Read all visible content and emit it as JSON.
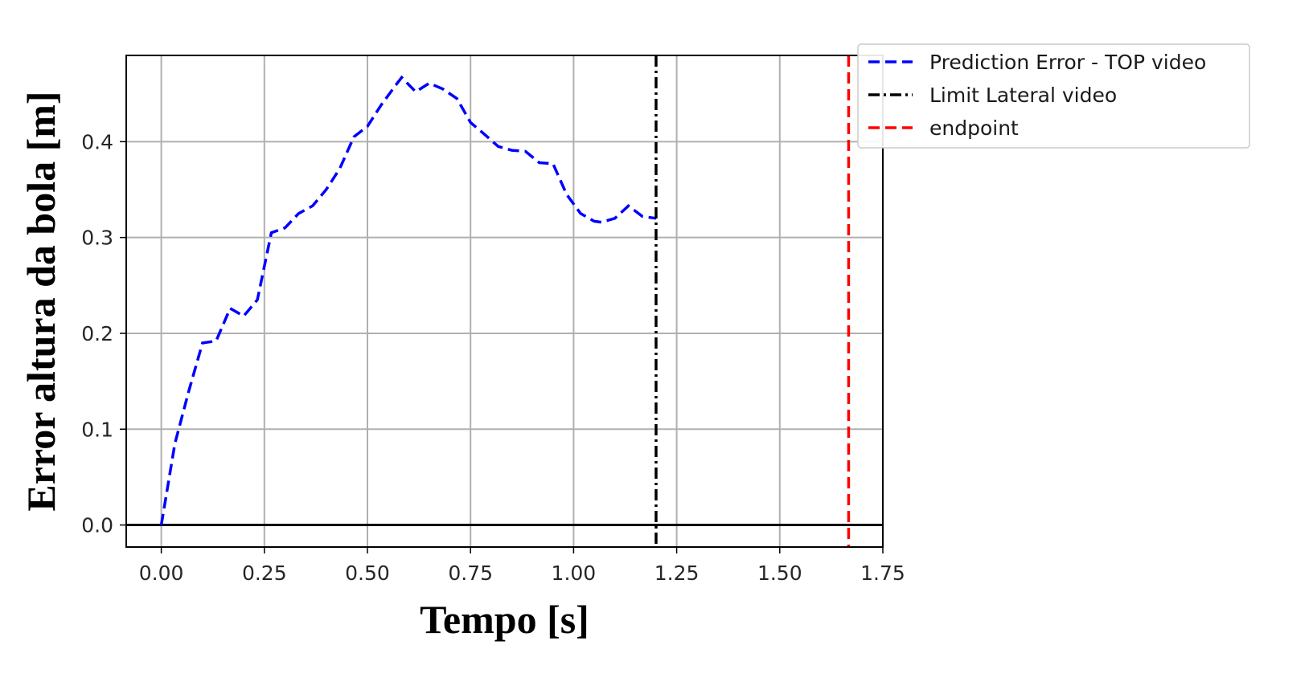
{
  "chart_data": {
    "type": "line",
    "title": "",
    "xlabel": "Tempo [s]",
    "ylabel": "Error altura da bola [m]",
    "xlim": [
      -0.085,
      1.75
    ],
    "ylim": [
      -0.023,
      0.49
    ],
    "xticks": [
      "0.00",
      "0.25",
      "0.50",
      "0.75",
      "1.00",
      "1.25",
      "1.50",
      "1.75"
    ],
    "xtick_values": [
      0,
      0.25,
      0.5,
      0.75,
      1.0,
      1.25,
      1.5,
      1.75
    ],
    "yticks": [
      "0.0",
      "0.1",
      "0.2",
      "0.3",
      "0.4"
    ],
    "ytick_values": [
      0,
      0.1,
      0.2,
      0.3,
      0.4
    ],
    "grid": true,
    "legend_position": "outside top-right",
    "series": [
      {
        "name": "Prediction Error - TOP video",
        "color": "#0000ff",
        "linestyle": "dashed",
        "x": [
          0.0,
          0.033,
          0.067,
          0.1,
          0.133,
          0.167,
          0.2,
          0.233,
          0.267,
          0.3,
          0.333,
          0.367,
          0.4,
          0.433,
          0.467,
          0.5,
          0.533,
          0.567,
          0.583,
          0.617,
          0.65,
          0.683,
          0.717,
          0.75,
          0.783,
          0.817,
          0.85,
          0.883,
          0.917,
          0.95,
          0.983,
          1.017,
          1.05,
          1.067,
          1.1,
          1.133,
          1.167,
          1.2
        ],
        "y": [
          0.0,
          0.085,
          0.14,
          0.19,
          0.192,
          0.226,
          0.218,
          0.235,
          0.305,
          0.31,
          0.325,
          0.333,
          0.35,
          0.372,
          0.405,
          0.416,
          0.438,
          0.458,
          0.467,
          0.452,
          0.461,
          0.455,
          0.445,
          0.42,
          0.408,
          0.395,
          0.391,
          0.39,
          0.378,
          0.377,
          0.345,
          0.325,
          0.317,
          0.316,
          0.32,
          0.333,
          0.322,
          0.32
        ]
      },
      {
        "name": "Limit Lateral video",
        "color": "#000000",
        "linestyle": "dashdot",
        "x_constant": 1.2
      },
      {
        "name": "endpoint",
        "color": "#ff0000",
        "linestyle": "dashed",
        "x_constant": 1.667
      }
    ],
    "hline_y": 0.0
  }
}
